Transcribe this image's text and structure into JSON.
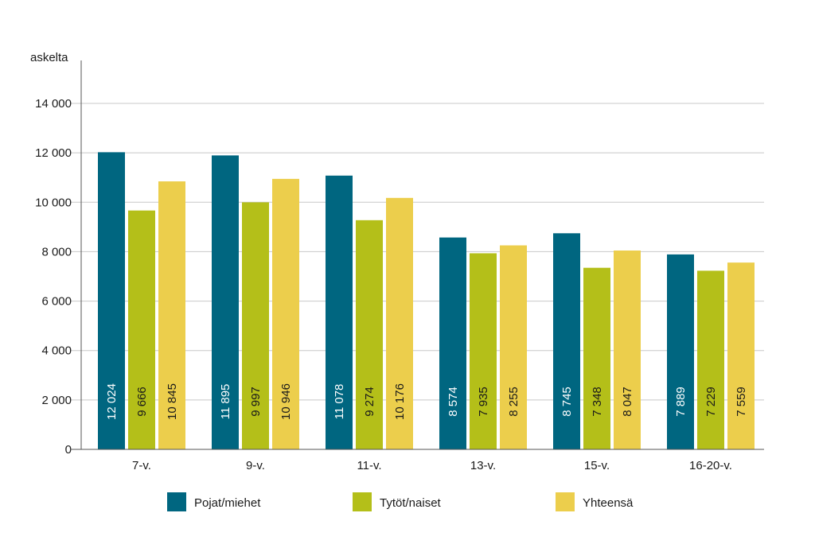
{
  "chart_data": {
    "type": "bar",
    "ylabel": "askelta",
    "ylim": [
      0,
      14000
    ],
    "yticks": [
      0,
      2000,
      4000,
      6000,
      8000,
      10000,
      12000,
      14000
    ],
    "ytick_labels": [
      "0",
      "2 000",
      "4 000",
      "6 000",
      "8 000",
      "10 000",
      "12 000",
      "14 000"
    ],
    "grid": true,
    "legend_position": "bottom",
    "categories": [
      "7-v.",
      "9-v.",
      "11-v.",
      "13-v.",
      "15-v.",
      "16-20-v."
    ],
    "series": [
      {
        "name": "Pojat/miehet",
        "color": "#006680",
        "label_color": "#ffffff",
        "values": [
          12024,
          11895,
          11078,
          8574,
          8745,
          7889
        ],
        "value_labels": [
          "12 024",
          "11 895",
          "11 078",
          "8 574",
          "8 745",
          "7 889"
        ]
      },
      {
        "name": "Tytöt/naiset",
        "color": "#b4bf19",
        "label_color": "#1a1a1a",
        "values": [
          9666,
          9997,
          9274,
          7935,
          7348,
          7229
        ],
        "value_labels": [
          "9 666",
          "9 997",
          "9 274",
          "7 935",
          "7 348",
          "7 229"
        ]
      },
      {
        "name": "Yhteensä",
        "color": "#ecce4c",
        "label_color": "#1a1a1a",
        "values": [
          10845,
          10946,
          10176,
          8255,
          8047,
          7559
        ],
        "value_labels": [
          "10 845",
          "10 946",
          "10 176",
          "8 255",
          "8 047",
          "7 559"
        ]
      }
    ]
  }
}
